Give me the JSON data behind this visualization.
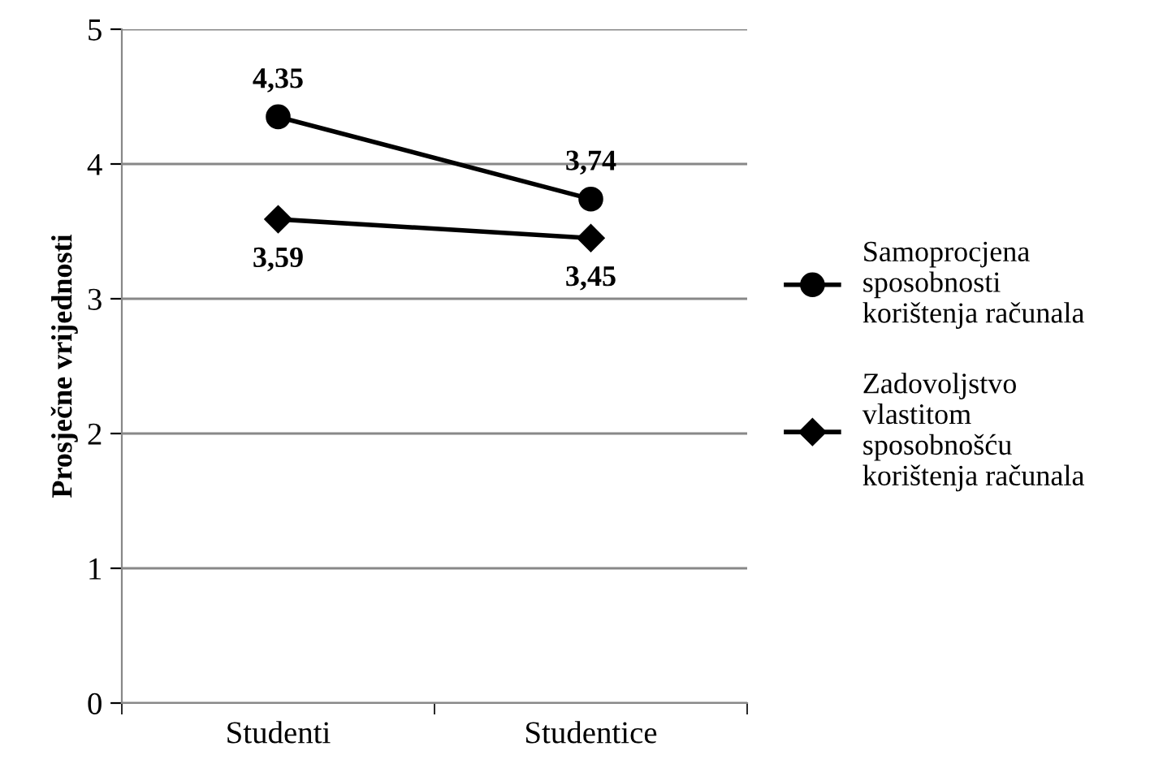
{
  "chart_data": {
    "type": "line",
    "ylabel": "Prosječne vrijednosti",
    "categories": [
      "Studenti",
      "Studentice"
    ],
    "series": [
      {
        "name": "Samoprocjena\nsposobnosti\nkorištenja računala",
        "color": "#000000",
        "values": [
          4.35,
          3.74
        ],
        "marker": "circle",
        "value_labels": [
          "4,35",
          "3,74"
        ]
      },
      {
        "name": "Zadovoljstvo\nvlastitom\nsposobnošću\nkorištenja računala",
        "color": "#000000",
        "values": [
          3.59,
          3.45
        ],
        "marker": "diamond",
        "value_labels": [
          "3,59",
          "3,45"
        ]
      }
    ],
    "ylim": [
      0,
      5
    ],
    "yticks": [
      0,
      1,
      2,
      3,
      4,
      5
    ],
    "grid": "y",
    "legend": "right",
    "line_style": "solid"
  }
}
